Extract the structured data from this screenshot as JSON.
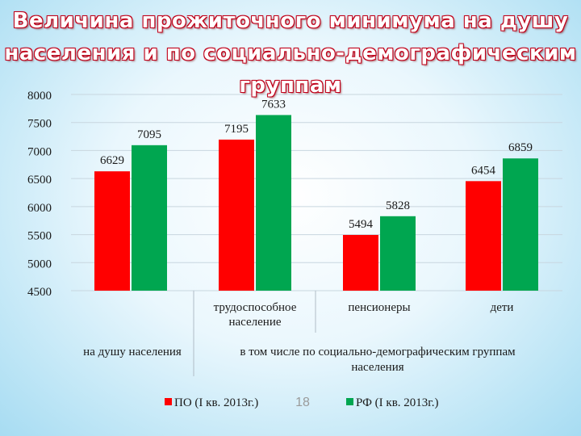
{
  "title": "Величина прожиточного минимума на душу населения и по социально-демографическим группам",
  "slide_number": "18",
  "colors": {
    "po": "#ff0000",
    "rf": "#00a650"
  },
  "chart_data": {
    "type": "bar",
    "title": "Величина прожиточного минимума на душу населения и по социально-демографическим группам",
    "categories": [
      "на душу населения",
      "трудоспособное население",
      "пенсионеры",
      "дети"
    ],
    "category_lines": [
      [
        "на душу населения"
      ],
      [
        "трудоспособное",
        "население"
      ],
      [
        "пенсионеры"
      ],
      [
        "дети"
      ]
    ],
    "group_label_lines": [
      "в том числе по социально-демографическим группам",
      "населения"
    ],
    "series": [
      {
        "name": "ПО (I кв. 2013г.)",
        "values": [
          6629,
          7195,
          5494,
          6454
        ],
        "color": "#ff0000"
      },
      {
        "name": "РФ (I кв. 2013г.)",
        "values": [
          7095,
          7633,
          5828,
          6859
        ],
        "color": "#00a650"
      }
    ],
    "yticks": [
      4500,
      5000,
      5500,
      6000,
      6500,
      7000,
      7500,
      8000
    ],
    "ylim": [
      4500,
      8000
    ],
    "grid": true,
    "legend": "bottom"
  }
}
